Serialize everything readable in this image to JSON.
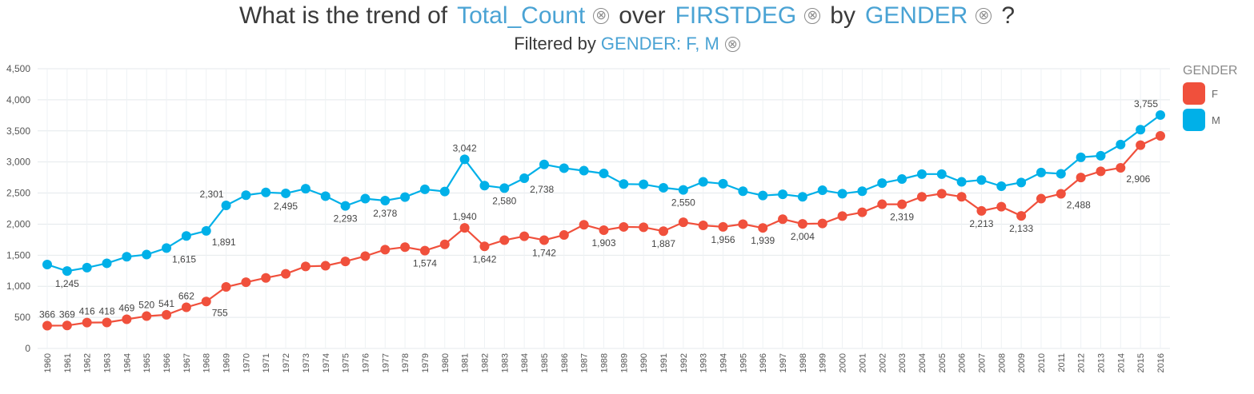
{
  "header": {
    "title_prefix": "What is the trend of",
    "measure": "Total_Count",
    "over_word": "over",
    "dimension": "FIRSTDEG",
    "by_word": "by",
    "group": "GENDER",
    "question_mark": "?",
    "filter_prefix": "Filtered by",
    "filter_value": "GENDER: F, M",
    "clear_glyph": "⊗"
  },
  "legend": {
    "title": "GENDER",
    "items": [
      {
        "label": "F",
        "color": "#f0503c"
      },
      {
        "label": "M",
        "color": "#00b0e8"
      }
    ]
  },
  "chart_data": {
    "type": "line",
    "title": "What is the trend of Total_Count over FIRSTDEG by GENDER ?",
    "subtitle": "Filtered by GENDER: F, M",
    "xlabel": "",
    "ylabel": "",
    "ylim": [
      0,
      4500
    ],
    "yticks": [
      0,
      500,
      1000,
      1500,
      2000,
      2500,
      3000,
      3500,
      4000,
      4500
    ],
    "grid": true,
    "legend_position": "right",
    "x": [
      "1960",
      "1961",
      "1962",
      "1963",
      "1964",
      "1965",
      "1966",
      "1967",
      "1968",
      "1969",
      "1970",
      "1971",
      "1972",
      "1973",
      "1974",
      "1975",
      "1976",
      "1977",
      "1978",
      "1979",
      "1980",
      "1981",
      "1982",
      "1983",
      "1984",
      "1985",
      "1986",
      "1987",
      "1988",
      "1989",
      "1990",
      "1991",
      "1992",
      "1993",
      "1994",
      "1995",
      "1996",
      "1997",
      "1998",
      "1999",
      "2000",
      "2001",
      "2002",
      "2003",
      "2004",
      "2005",
      "2006",
      "2007",
      "2008",
      "2009",
      "2010",
      "2011",
      "2012",
      "2013",
      "2014",
      "2015",
      "2016"
    ],
    "series": [
      {
        "name": "F",
        "color": "#f0503c",
        "values": [
          366,
          369,
          416,
          418,
          469,
          520,
          541,
          662,
          755,
          990,
          1065,
          1135,
          1200,
          1320,
          1330,
          1400,
          1485,
          1590,
          1630,
          1574,
          1675,
          1940,
          1642,
          1742,
          1805,
          1742,
          1825,
          1990,
          1903,
          1955,
          1950,
          1887,
          2030,
          1980,
          1956,
          2000,
          1939,
          2080,
          2004,
          2010,
          2130,
          2190,
          2320,
          2319,
          2440,
          2490,
          2440,
          2213,
          2280,
          2133,
          2410,
          2488,
          2750,
          2850,
          2906,
          3270,
          3420
        ]
      },
      {
        "name": "M",
        "color": "#00b0e8",
        "values": [
          1350,
          1245,
          1300,
          1370,
          1475,
          1510,
          1615,
          1810,
          1891,
          2301,
          2465,
          2510,
          2495,
          2570,
          2450,
          2293,
          2410,
          2378,
          2435,
          2560,
          2525,
          3042,
          2620,
          2580,
          2738,
          2960,
          2900,
          2860,
          2815,
          2645,
          2640,
          2585,
          2550,
          2680,
          2650,
          2530,
          2460,
          2480,
          2440,
          2545,
          2490,
          2530,
          2660,
          2725,
          2805,
          2805,
          2680,
          2710,
          2610,
          2670,
          2830,
          2810,
          3075,
          3100,
          3280,
          3520,
          3755
        ]
      }
    ],
    "data_labels": [
      {
        "series": "F",
        "x": "1960",
        "text": "366",
        "pos": "above"
      },
      {
        "series": "F",
        "x": "1961",
        "text": "369",
        "pos": "above"
      },
      {
        "series": "F",
        "x": "1962",
        "text": "416",
        "pos": "above"
      },
      {
        "series": "F",
        "x": "1963",
        "text": "418",
        "pos": "above"
      },
      {
        "series": "F",
        "x": "1964",
        "text": "469",
        "pos": "above"
      },
      {
        "series": "F",
        "x": "1965",
        "text": "520",
        "pos": "above"
      },
      {
        "series": "F",
        "x": "1966",
        "text": "541",
        "pos": "above"
      },
      {
        "series": "F",
        "x": "1967",
        "text": "662",
        "pos": "above"
      },
      {
        "series": "F",
        "x": "1968",
        "text": "755",
        "pos": "below-right"
      },
      {
        "series": "F",
        "x": "1979",
        "text": "1,574",
        "pos": "below"
      },
      {
        "series": "F",
        "x": "1981",
        "text": "1,940",
        "pos": "above"
      },
      {
        "series": "F",
        "x": "1982",
        "text": "1,642",
        "pos": "below"
      },
      {
        "series": "F",
        "x": "1985",
        "text": "1,742",
        "pos": "below"
      },
      {
        "series": "F",
        "x": "1988",
        "text": "1,903",
        "pos": "below"
      },
      {
        "series": "F",
        "x": "1991",
        "text": "1,887",
        "pos": "below"
      },
      {
        "series": "F",
        "x": "1994",
        "text": "1,956",
        "pos": "below"
      },
      {
        "series": "F",
        "x": "1996",
        "text": "1,939",
        "pos": "below"
      },
      {
        "series": "F",
        "x": "1998",
        "text": "2,004",
        "pos": "below"
      },
      {
        "series": "F",
        "x": "2003",
        "text": "2,319",
        "pos": "below"
      },
      {
        "series": "F",
        "x": "2007",
        "text": "2,213",
        "pos": "below"
      },
      {
        "series": "F",
        "x": "2009",
        "text": "2,133",
        "pos": "below"
      },
      {
        "series": "F",
        "x": "2011",
        "text": "2,488",
        "pos": "below-right"
      },
      {
        "series": "F",
        "x": "2014",
        "text": "2,906",
        "pos": "below-right"
      },
      {
        "series": "M",
        "x": "1961",
        "text": "1,245",
        "pos": "below"
      },
      {
        "series": "M",
        "x": "1966",
        "text": "1,615",
        "pos": "below-right"
      },
      {
        "series": "M",
        "x": "1968",
        "text": "1,891",
        "pos": "below-right"
      },
      {
        "series": "M",
        "x": "1969",
        "text": "2,301",
        "pos": "above-left"
      },
      {
        "series": "M",
        "x": "1972",
        "text": "2,495",
        "pos": "below"
      },
      {
        "series": "M",
        "x": "1975",
        "text": "2,293",
        "pos": "below"
      },
      {
        "series": "M",
        "x": "1977",
        "text": "2,378",
        "pos": "below"
      },
      {
        "series": "M",
        "x": "1981",
        "text": "3,042",
        "pos": "above"
      },
      {
        "series": "M",
        "x": "1983",
        "text": "2,580",
        "pos": "below"
      },
      {
        "series": "M",
        "x": "1984",
        "text": "2,738",
        "pos": "below-right"
      },
      {
        "series": "M",
        "x": "1992",
        "text": "2,550",
        "pos": "below"
      },
      {
        "series": "M",
        "x": "2016",
        "text": "3,755",
        "pos": "above-left"
      }
    ]
  }
}
